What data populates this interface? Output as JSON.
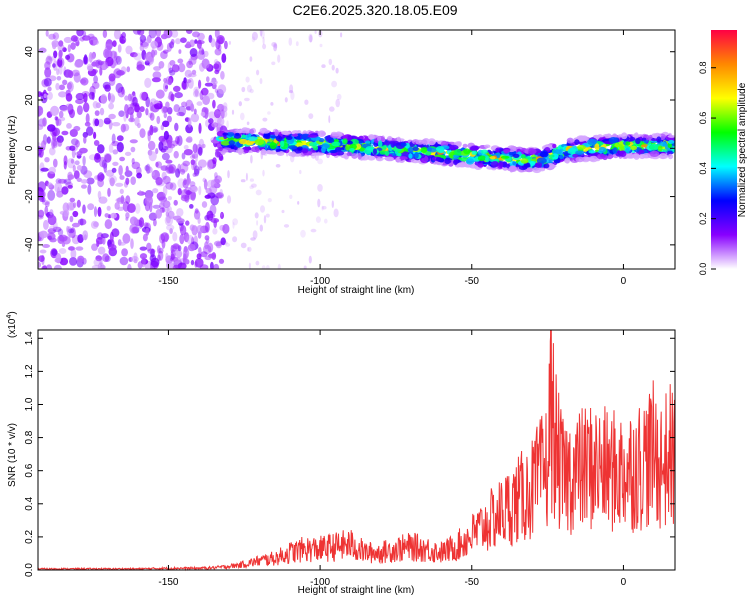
{
  "title": "C2E6.2025.320.18.05.E09",
  "chart_data": [
    {
      "type": "heatmap",
      "xlabel": "Height of straight line (km)",
      "ylabel": "Frequency (Hz)",
      "xlim": [
        -193,
        17
      ],
      "ylim": [
        -50,
        49
      ],
      "x_ticks": [
        -150,
        -100,
        -50,
        0
      ],
      "x_tick_labels": [
        "-150",
        "-100",
        "-50",
        "0"
      ],
      "y_ticks": [
        -40,
        -20,
        0,
        20,
        40
      ],
      "y_tick_labels": [
        "-40",
        "-20",
        "0",
        "20",
        "40"
      ],
      "signal_track": {
        "x": [
          -133,
          -120,
          -110,
          -100,
          -90,
          -80,
          -70,
          -60,
          -50,
          -40,
          -30,
          -25,
          -20,
          -10,
          0,
          10,
          17
        ],
        "frequency_hz": [
          3,
          3,
          2,
          2,
          1,
          0,
          -1,
          -2,
          -3,
          -4,
          -5,
          -4,
          -1,
          0,
          1,
          1,
          1
        ]
      },
      "colorbar": {
        "label": "Normalized spectral amplitude",
        "range": [
          0.0,
          0.95
        ],
        "ticks": [
          0.0,
          0.2,
          0.4,
          0.6,
          0.8
        ],
        "tick_labels": [
          "0.0",
          "0.2",
          "0.4",
          "0.6",
          "0.8"
        ],
        "colors": [
          "#ffffff",
          "#8800ff",
          "#0000ff",
          "#00ffff",
          "#00ff00",
          "#ffff00",
          "#ff8800",
          "#ff0044"
        ]
      }
    },
    {
      "type": "line",
      "xlabel": "Height of straight line (km)",
      "ylabel": "SNR (10 * v/v)",
      "scale_label": "(x10",
      "scale_exponent": "4",
      "scale_close": ")",
      "xlim": [
        -193,
        17
      ],
      "ylim": [
        0,
        1.45
      ],
      "x_ticks": [
        -150,
        -100,
        -50,
        0
      ],
      "x_tick_labels": [
        "-150",
        "-100",
        "-50",
        "0"
      ],
      "y_ticks": [
        0.0,
        0.2,
        0.4,
        0.6,
        0.8,
        1.0,
        1.2,
        1.4
      ],
      "y_tick_labels": [
        "0.0",
        "0.2",
        "0.4",
        "0.6",
        "0.8",
        "1.0",
        "1.2",
        "1.4"
      ],
      "series": [
        {
          "name": "SNR",
          "color": "#ee3333",
          "x": [
            -193,
            -180,
            -170,
            -160,
            -150,
            -140,
            -135,
            -130,
            -125,
            -120,
            -115,
            -110,
            -105,
            -100,
            -95,
            -90,
            -85,
            -80,
            -75,
            -70,
            -65,
            -60,
            -55,
            -50,
            -45,
            -40,
            -35,
            -30,
            -25,
            -24,
            -22,
            -20,
            -15,
            -10,
            -5,
            0,
            5,
            10,
            13,
            15,
            17
          ],
          "y": [
            0.01,
            0.01,
            0.01,
            0.01,
            0.015,
            0.015,
            0.02,
            0.03,
            0.05,
            0.08,
            0.1,
            0.15,
            0.18,
            0.18,
            0.2,
            0.22,
            0.15,
            0.15,
            0.18,
            0.2,
            0.18,
            0.15,
            0.2,
            0.3,
            0.4,
            0.5,
            0.6,
            0.7,
            0.9,
            1.45,
            1.0,
            0.8,
            0.85,
            0.9,
            0.85,
            0.85,
            0.9,
            1.0,
            0.9,
            1.0,
            0.95
          ]
        }
      ]
    }
  ]
}
